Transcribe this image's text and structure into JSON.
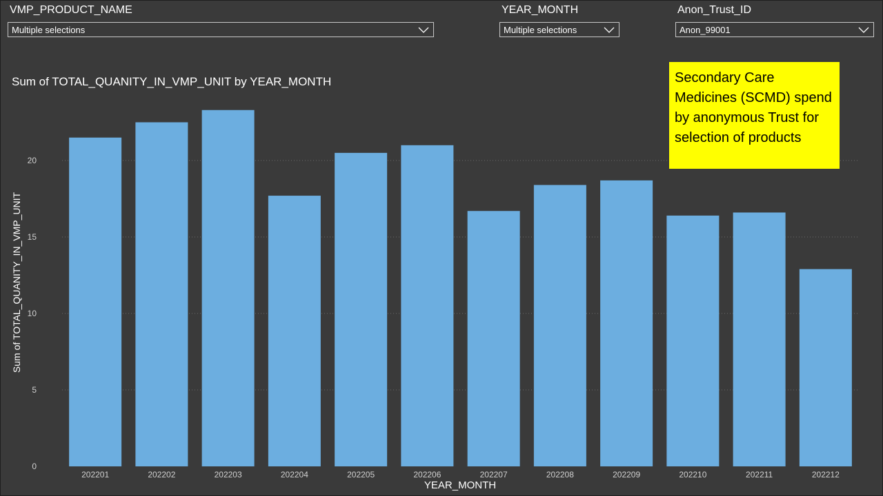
{
  "filters": {
    "product": {
      "title": "VMP_PRODUCT_NAME",
      "value": "Multiple selections"
    },
    "year_month": {
      "title": "YEAR_MONTH",
      "value": "Multiple selections"
    },
    "trust": {
      "title": "Anon_Trust_ID",
      "value": "Anon_99001"
    }
  },
  "note": "Secondary Care Medicines (SCMD) spend by anonymous Trust for selection of products",
  "colors": {
    "bar": "#6caee0",
    "background": "#3a3a3a",
    "note_bg": "#ffff00"
  },
  "icons": {
    "dropdown": "chevron-down-icon"
  },
  "chart_data": {
    "type": "bar",
    "title": "Sum of TOTAL_QUANITY_IN_VMP_UNIT by YEAR_MONTH",
    "xlabel": "YEAR_MONTH",
    "ylabel": "Sum of TOTAL_QUANITY_IN_VMP_UNIT",
    "categories": [
      "202201",
      "202202",
      "202203",
      "202204",
      "202205",
      "202206",
      "202207",
      "202208",
      "202209",
      "202210",
      "202211",
      "202212"
    ],
    "values": [
      21.5,
      22.5,
      23.3,
      17.7,
      20.5,
      21.0,
      16.7,
      18.4,
      18.7,
      16.4,
      16.6,
      12.9
    ],
    "ylim": [
      0,
      24
    ],
    "yticks": [
      0,
      5,
      10,
      15,
      20
    ],
    "grid": true
  }
}
